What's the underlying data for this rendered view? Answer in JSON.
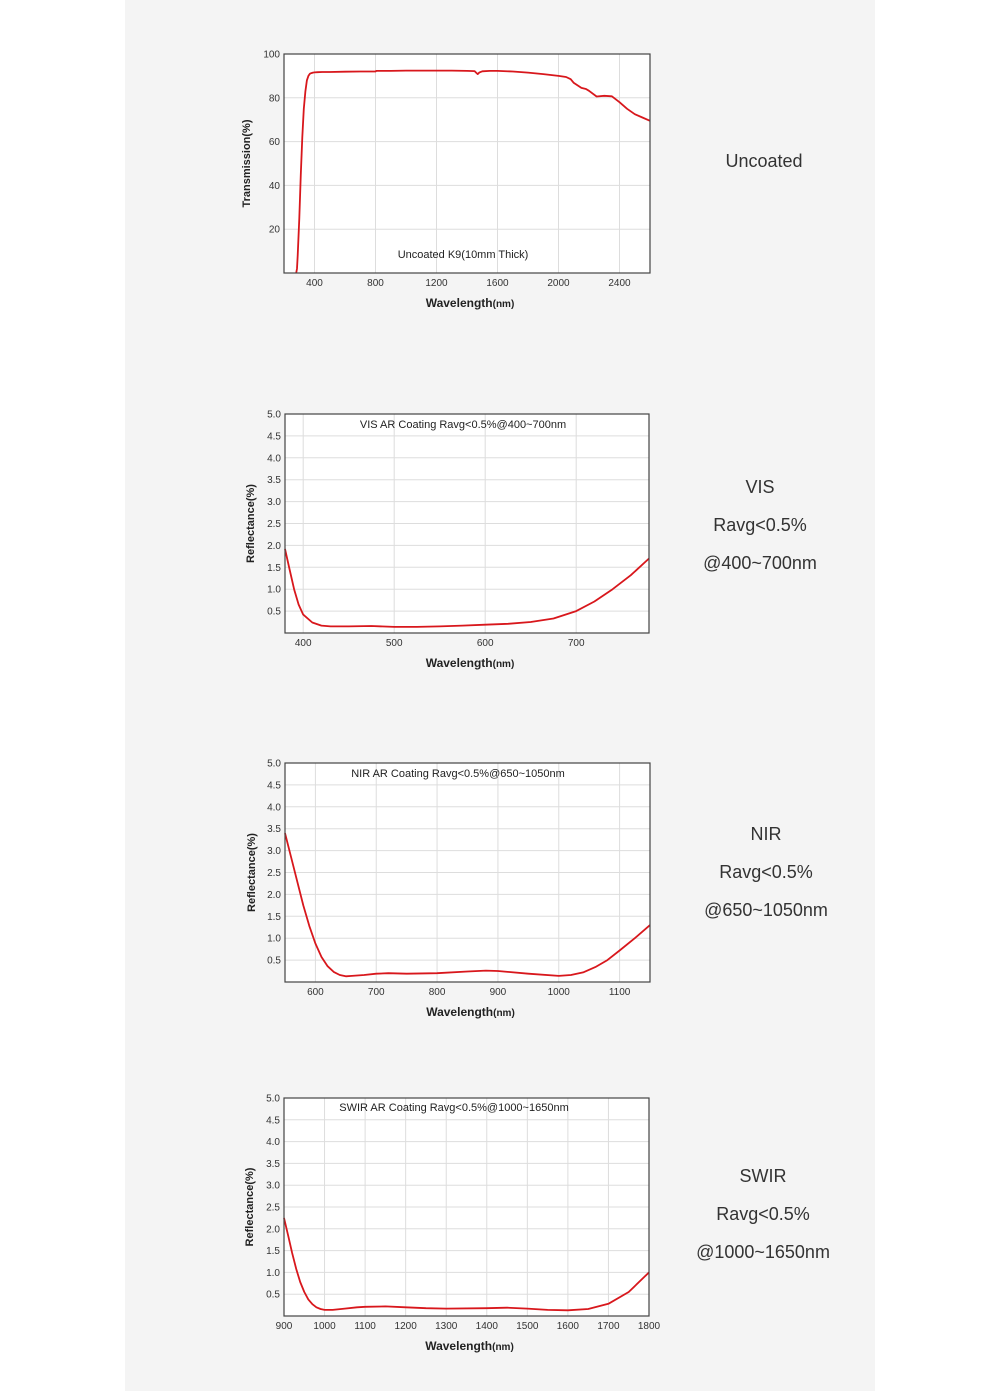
{
  "style": {
    "panel_background": "#f4f4f4",
    "page_background": "#ffffff",
    "curve_color": "#d8171c",
    "grid_color": "#dddddd",
    "frame_color": "#444444",
    "text_color": "#333333"
  },
  "chart_data": [
    {
      "type": "line",
      "title": "Uncoated K9(10mm Thick)",
      "xlabel": "Wavelength",
      "xlabel_unit": "(nm)",
      "ylabel": "Transmission(%)",
      "xlim": [
        200,
        2600
      ],
      "ylim": [
        0,
        100
      ],
      "xticks": [
        400,
        800,
        1200,
        1600,
        2000,
        2400
      ],
      "yticks": [
        20,
        40,
        60,
        80,
        100
      ],
      "series": [
        {
          "x": [
            280,
            285,
            290,
            300,
            310,
            320,
            330,
            340,
            350,
            360,
            370,
            380,
            390,
            400,
            420,
            450,
            500,
            600,
            700,
            800,
            805,
            900,
            1000,
            1100,
            1200,
            1300,
            1400,
            1450,
            1460,
            1470,
            1480,
            1500,
            1550,
            1600,
            1700,
            1800,
            1900,
            2000,
            2050,
            2080,
            2100,
            2150,
            2180,
            2200,
            2250,
            2300,
            2350,
            2400,
            2450,
            2500,
            2550,
            2600
          ],
          "y": [
            0,
            2,
            8,
            25,
            45,
            62,
            75,
            83,
            88,
            90,
            91,
            91.3,
            91.5,
            91.6,
            91.7,
            91.8,
            91.8,
            91.9,
            92,
            92,
            92.3,
            92.3,
            92.4,
            92.4,
            92.4,
            92.4,
            92.3,
            92.2,
            91.5,
            90.8,
            91.5,
            92.1,
            92.3,
            92.3,
            92.0,
            91.5,
            90.8,
            90.0,
            89.5,
            88.5,
            86.8,
            84.5,
            84.0,
            83.2,
            80.6,
            80.9,
            80.7,
            78.0,
            75.0,
            72.5,
            71.0,
            69.5
          ]
        }
      ]
    },
    {
      "type": "line",
      "title": "VIS AR Coating Ravg<0.5%@400~700nm",
      "xlabel": "Wavelength",
      "xlabel_unit": "(nm)",
      "ylabel": "Reflectance(%)",
      "xlim": [
        380,
        780
      ],
      "ylim": [
        0,
        5
      ],
      "xticks": [
        400,
        500,
        600,
        700
      ],
      "yticks": [
        0.5,
        1.0,
        1.5,
        2.0,
        2.5,
        3.0,
        3.5,
        4.0,
        4.5,
        5.0
      ],
      "series": [
        {
          "x": [
            380,
            385,
            390,
            395,
            400,
            410,
            420,
            430,
            450,
            475,
            500,
            525,
            550,
            575,
            600,
            625,
            650,
            675,
            700,
            720,
            740,
            760,
            780
          ],
          "y": [
            1.92,
            1.45,
            1.0,
            0.65,
            0.42,
            0.24,
            0.17,
            0.15,
            0.15,
            0.16,
            0.14,
            0.14,
            0.15,
            0.17,
            0.19,
            0.21,
            0.25,
            0.33,
            0.5,
            0.72,
            1.0,
            1.32,
            1.7
          ]
        }
      ]
    },
    {
      "type": "line",
      "title": "NIR AR Coating Ravg<0.5%@650~1050nm",
      "xlabel": "Wavelength",
      "xlabel_unit": "(nm)",
      "ylabel": "Reflectance(%)",
      "xlim": [
        550,
        1150
      ],
      "ylim": [
        0,
        5
      ],
      "xticks": [
        600,
        700,
        800,
        900,
        1000,
        1100
      ],
      "yticks": [
        0.5,
        1.0,
        1.5,
        2.0,
        2.5,
        3.0,
        3.5,
        4.0,
        4.5,
        5.0
      ],
      "series": [
        {
          "x": [
            550,
            560,
            570,
            580,
            590,
            600,
            610,
            620,
            630,
            640,
            650,
            660,
            680,
            700,
            720,
            750,
            800,
            850,
            880,
            900,
            950,
            1000,
            1020,
            1040,
            1060,
            1080,
            1100,
            1125,
            1150
          ],
          "y": [
            3.4,
            2.85,
            2.3,
            1.75,
            1.28,
            0.88,
            0.57,
            0.36,
            0.23,
            0.16,
            0.13,
            0.14,
            0.16,
            0.19,
            0.2,
            0.19,
            0.2,
            0.24,
            0.26,
            0.25,
            0.19,
            0.14,
            0.16,
            0.22,
            0.34,
            0.5,
            0.72,
            1.0,
            1.3
          ]
        }
      ]
    },
    {
      "type": "line",
      "title": "SWIR AR Coating Ravg<0.5%@1000~1650nm",
      "xlabel": "Wavelength",
      "xlabel_unit": "(nm)",
      "ylabel": "Reflectance(%)",
      "xlim": [
        900,
        1800
      ],
      "ylim": [
        0,
        5
      ],
      "xticks": [
        900,
        1000,
        1100,
        1200,
        1300,
        1400,
        1500,
        1600,
        1700,
        1800
      ],
      "yticks": [
        0.5,
        1.0,
        1.5,
        2.0,
        2.5,
        3.0,
        3.5,
        4.0,
        4.5,
        5.0
      ],
      "series": [
        {
          "x": [
            900,
            910,
            920,
            930,
            940,
            950,
            960,
            970,
            980,
            990,
            1000,
            1020,
            1050,
            1080,
            1100,
            1150,
            1200,
            1250,
            1300,
            1400,
            1450,
            1500,
            1550,
            1600,
            1650,
            1700,
            1750,
            1800
          ],
          "y": [
            2.25,
            1.85,
            1.45,
            1.08,
            0.78,
            0.55,
            0.38,
            0.27,
            0.2,
            0.16,
            0.14,
            0.14,
            0.17,
            0.2,
            0.21,
            0.22,
            0.2,
            0.18,
            0.17,
            0.18,
            0.19,
            0.17,
            0.14,
            0.13,
            0.16,
            0.28,
            0.55,
            1.0
          ]
        }
      ]
    }
  ],
  "side_labels": [
    {
      "lines": [
        "Uncoated"
      ]
    },
    {
      "lines": [
        "VIS",
        "Ravg<0.5%",
        "@400~700nm"
      ]
    },
    {
      "lines": [
        "NIR",
        "Ravg<0.5%",
        "@650~1050nm"
      ]
    },
    {
      "lines": [
        "SWIR",
        "Ravg<0.5%",
        "@1000~1650nm"
      ]
    }
  ]
}
